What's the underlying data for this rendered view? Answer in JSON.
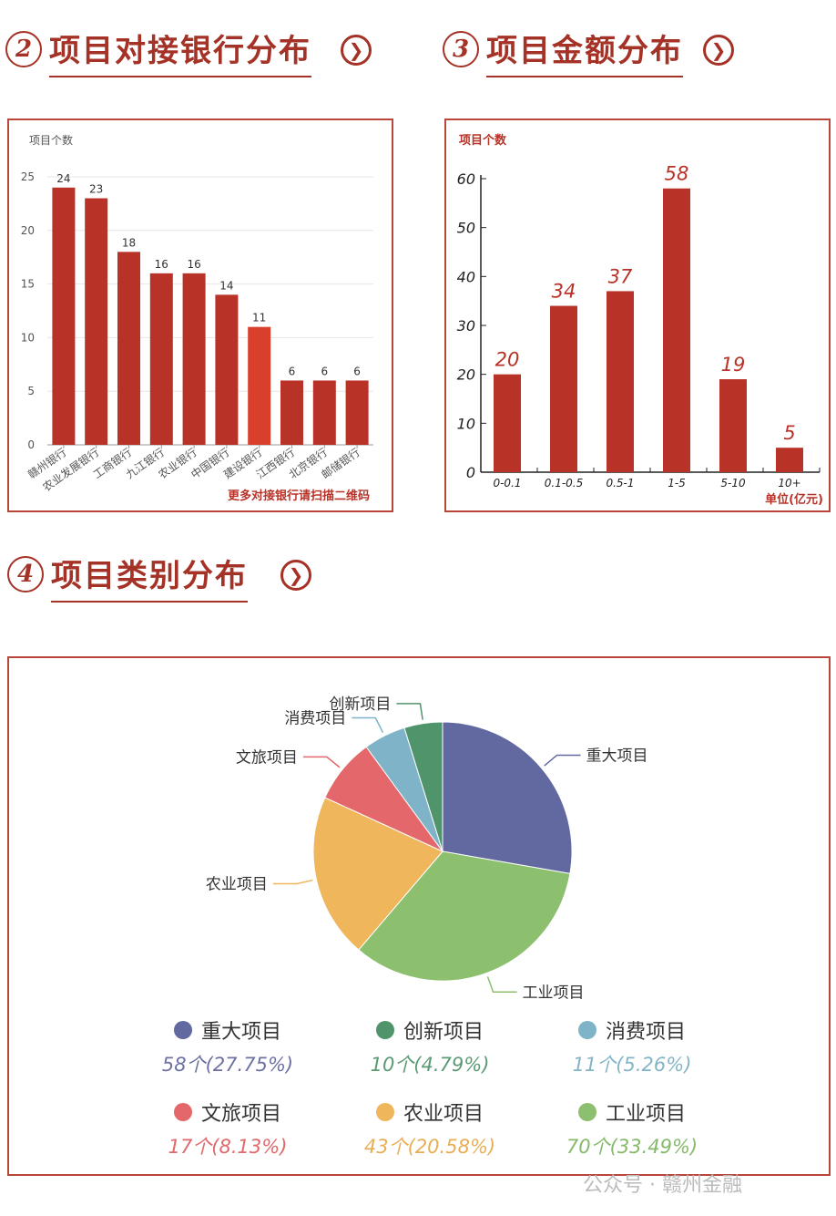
{
  "sections": {
    "bank": {
      "num": "2",
      "title": "项目对接银行分布",
      "arrow": "❯"
    },
    "amount": {
      "num": "3",
      "title": "项目金额分布",
      "arrow": "❯"
    },
    "category": {
      "num": "4",
      "title": "项目类别分布",
      "arrow": "❯"
    }
  },
  "bank_chart": {
    "ylabel": "项目个数",
    "footer": "更多对接银行请扫描二维码",
    "color": "#b83227",
    "highlight_color": "#d9402b"
  },
  "amount_chart": {
    "ylabel": "项目个数",
    "unit_label": "单位(亿元)",
    "color": "#b83227"
  },
  "category_chart": {
    "colors": {
      "重大项目": "#6268a0",
      "工业项目": "#8cbf6e",
      "农业项目": "#efb65c",
      "文旅项目": "#e4676b",
      "消费项目": "#7fb3c7",
      "创新项目": "#4f946a"
    }
  },
  "legend": [
    {
      "name": "重大项目",
      "value": "58个(27.75%)",
      "color": "#6268a0",
      "text_color": "#6d72a3"
    },
    {
      "name": "创新项目",
      "value": "10个(4.79%)",
      "color": "#4f946a",
      "text_color": "#5a9b74"
    },
    {
      "name": "消费项目",
      "value": "11个(5.26%)",
      "color": "#7fb3c7",
      "text_color": "#84b5c7"
    },
    {
      "name": "文旅项目",
      "value": "17个(8.13%)",
      "color": "#e4676b",
      "text_color": "#e0696c"
    },
    {
      "name": "农业项目",
      "value": "43个(20.58%)",
      "color": "#efb65c",
      "text_color": "#e9ae55"
    },
    {
      "name": "工业项目",
      "value": "70个(33.49%)",
      "color": "#8cbf6e",
      "text_color": "#86b96a"
    }
  ],
  "watermark": "公众号 · 赣州金融",
  "chart_data": [
    {
      "type": "bar",
      "title": "项目对接银行分布",
      "ylabel": "项目个数",
      "categories": [
        "赣州银行",
        "农业发展银行",
        "工商银行",
        "九江银行",
        "农业银行",
        "中国银行",
        "建设银行",
        "江西银行",
        "北京银行",
        "邮储银行"
      ],
      "values": [
        24,
        23,
        18,
        16,
        16,
        14,
        11,
        6,
        6,
        6
      ],
      "ylim": [
        0,
        25
      ],
      "yticks": [
        0,
        5,
        10,
        15,
        20,
        25
      ],
      "grid": true
    },
    {
      "type": "bar",
      "title": "项目金额分布",
      "ylabel": "项目个数",
      "xlabel": "单位(亿元)",
      "categories": [
        "0-0.1",
        "0.1-0.5",
        "0.5-1",
        "1-5",
        "5-10",
        "10+"
      ],
      "values": [
        20,
        34,
        37,
        58,
        19,
        5
      ],
      "ylim": [
        0,
        60
      ],
      "yticks": [
        0,
        10,
        20,
        30,
        40,
        50,
        60
      ],
      "grid": false
    },
    {
      "type": "pie",
      "title": "项目类别分布",
      "slices": [
        {
          "label": "重大项目",
          "value": 58
        },
        {
          "label": "工业项目",
          "value": 70
        },
        {
          "label": "农业项目",
          "value": 43
        },
        {
          "label": "文旅项目",
          "value": 17
        },
        {
          "label": "消费项目",
          "value": 11
        },
        {
          "label": "创新项目",
          "value": 10
        }
      ]
    }
  ]
}
